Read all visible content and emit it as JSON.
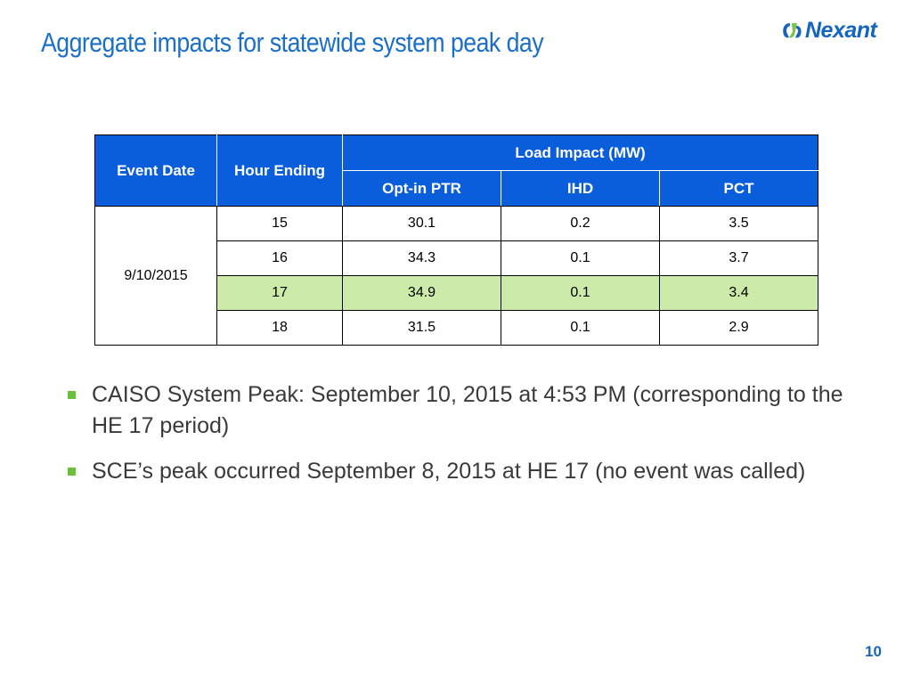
{
  "slide": {
    "title": "Aggregate impacts for statewide system peak day",
    "page_number": "10",
    "brand_color": "#1565C0",
    "logo": {
      "text": "Nexant",
      "icon": "nexant-logo-icon"
    }
  },
  "table": {
    "header": {
      "event_date": "Event Date",
      "hour_ending": "Hour Ending",
      "load_impact": "Load Impact (MW)",
      "opt_in_ptr": "Opt-in PTR",
      "ihd": "IHD",
      "pct": "PCT"
    },
    "event_date": "9/10/2015",
    "rows": [
      {
        "hour": "15",
        "opt_in_ptr": "30.1",
        "ihd": "0.2",
        "pct": "3.5"
      },
      {
        "hour": "16",
        "opt_in_ptr": "34.3",
        "ihd": "0.1",
        "pct": "3.7"
      },
      {
        "hour": "17",
        "opt_in_ptr": "34.9",
        "ihd": "0.1",
        "pct": "3.4"
      },
      {
        "hour": "18",
        "opt_in_ptr": "31.5",
        "ihd": "0.1",
        "pct": "2.9"
      }
    ],
    "header_color": "#0A5EDC",
    "highlight_color": "#CDEBA8"
  },
  "bullets": [
    "CAISO System Peak: September 10, 2015 at 4:53 PM (corresponding to the HE 17 period)",
    "SCE’s peak occurred September 8, 2015 at HE 17 (no event was called)"
  ],
  "bullet_color": "#6CBF3A"
}
